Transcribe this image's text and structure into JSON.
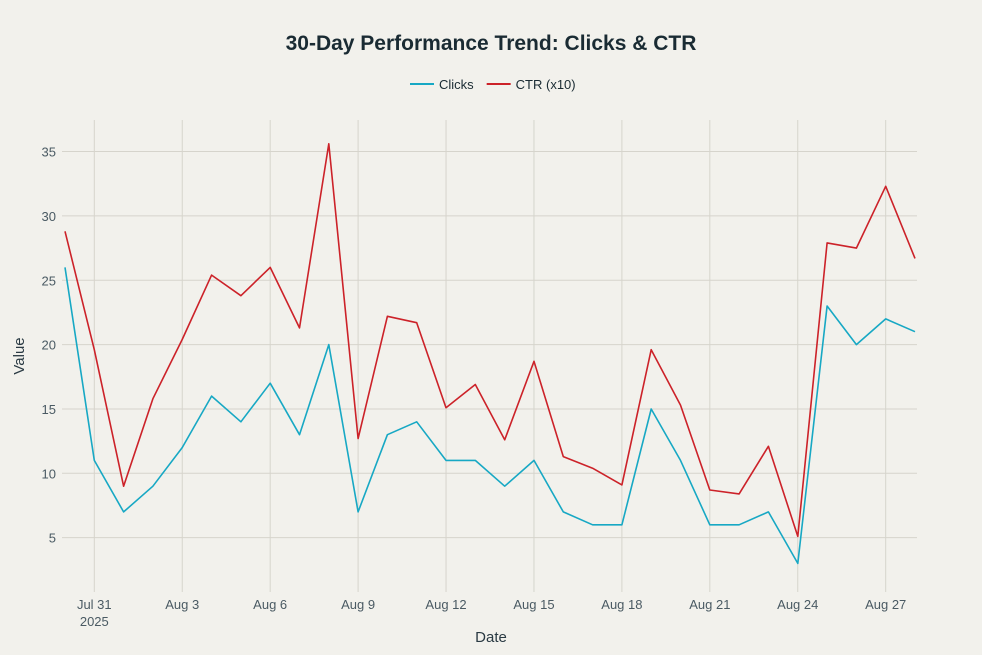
{
  "chart_data": {
    "type": "line",
    "title": "30-Day Performance Trend: Clicks & CTR",
    "xlabel": "Date",
    "ylabel": "Value",
    "x": [
      "2025-07-30",
      "2025-07-31",
      "2025-08-01",
      "2025-08-02",
      "2025-08-03",
      "2025-08-04",
      "2025-08-05",
      "2025-08-06",
      "2025-08-07",
      "2025-08-08",
      "2025-08-09",
      "2025-08-10",
      "2025-08-11",
      "2025-08-12",
      "2025-08-13",
      "2025-08-14",
      "2025-08-15",
      "2025-08-16",
      "2025-08-17",
      "2025-08-18",
      "2025-08-19",
      "2025-08-20",
      "2025-08-21",
      "2025-08-22",
      "2025-08-23",
      "2025-08-24",
      "2025-08-25",
      "2025-08-26",
      "2025-08-27",
      "2025-08-28"
    ],
    "x_ticks": [
      {
        "date": "2025-07-31",
        "label": "Jul 31",
        "sublabel": "2025"
      },
      {
        "date": "2025-08-03",
        "label": "Aug 3"
      },
      {
        "date": "2025-08-06",
        "label": "Aug 6"
      },
      {
        "date": "2025-08-09",
        "label": "Aug 9"
      },
      {
        "date": "2025-08-12",
        "label": "Aug 12"
      },
      {
        "date": "2025-08-15",
        "label": "Aug 15"
      },
      {
        "date": "2025-08-18",
        "label": "Aug 18"
      },
      {
        "date": "2025-08-21",
        "label": "Aug 21"
      },
      {
        "date": "2025-08-24",
        "label": "Aug 24"
      },
      {
        "date": "2025-08-27",
        "label": "Aug 27"
      }
    ],
    "y_ticks": [
      5,
      10,
      15,
      20,
      25,
      30,
      35
    ],
    "ylim": [
      0.5,
      37.5
    ],
    "grid": true,
    "legend_position": "top-center",
    "series": [
      {
        "name": "Clicks",
        "color": "#17a8c4",
        "values": [
          26,
          11,
          7,
          9,
          12,
          16,
          14,
          17,
          13,
          20,
          7,
          13,
          14,
          11,
          11,
          9,
          11,
          7,
          6,
          6,
          15,
          11,
          6,
          6,
          7,
          3,
          23,
          20,
          22,
          21
        ]
      },
      {
        "name": "CTR (x10)",
        "color": "#cc2229",
        "values": [
          28.8,
          19.6,
          9.0,
          15.8,
          20.4,
          25.4,
          23.8,
          26.0,
          21.3,
          35.6,
          12.7,
          22.2,
          21.7,
          15.1,
          16.9,
          12.6,
          18.7,
          11.3,
          10.4,
          9.1,
          19.6,
          15.3,
          8.7,
          8.4,
          12.1,
          5.1,
          27.9,
          27.5,
          32.3,
          26.7
        ]
      }
    ]
  }
}
